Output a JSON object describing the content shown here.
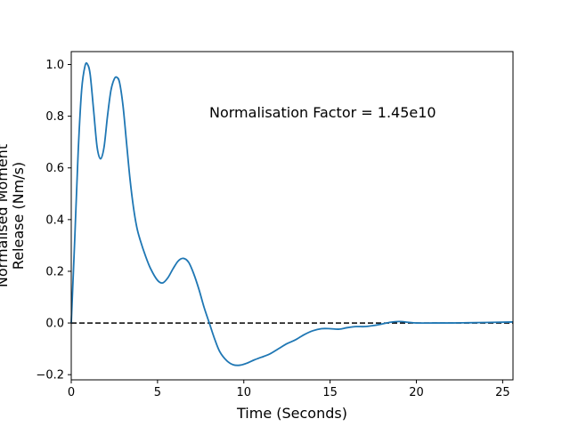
{
  "chart_data": {
    "type": "line",
    "xlabel": "Time (Seconds)",
    "ylabel": [
      "Normalised Moment",
      "Release (Nm/s)"
    ],
    "xlim": [
      0,
      25.6
    ],
    "ylim": [
      -0.22,
      1.05
    ],
    "xticks": [
      0,
      5,
      10,
      15,
      20,
      25
    ],
    "yticks": [
      -0.2,
      0.0,
      0.2,
      0.4,
      0.6,
      0.8,
      1.0
    ],
    "xtick_labels": [
      "0",
      "5",
      "10",
      "15",
      "20",
      "25"
    ],
    "ytick_labels": [
      "−0.2",
      "0.0",
      "0.2",
      "0.4",
      "0.6",
      "0.8",
      "1.0"
    ],
    "annotation": "Normalisation Factor = 1.45e10",
    "reference_line": {
      "y": 0.0,
      "style": "dashed",
      "color": "#000000"
    },
    "grid": false,
    "series": [
      {
        "color": "#1f77b4",
        "x": [
          0,
          0.2,
          0.4,
          0.6,
          0.8,
          0.95,
          1.1,
          1.3,
          1.5,
          1.7,
          1.9,
          2.1,
          2.3,
          2.5,
          2.65,
          2.8,
          3.0,
          3.2,
          3.4,
          3.6,
          3.8,
          4.0,
          4.3,
          4.6,
          5.0,
          5.3,
          5.6,
          5.9,
          6.2,
          6.5,
          6.8,
          7.1,
          7.4,
          7.7,
          8.0,
          8.3,
          8.6,
          9.0,
          9.4,
          9.8,
          10.2,
          10.6,
          11.0,
          11.5,
          12.0,
          12.5,
          13.0,
          13.5,
          14.0,
          14.5,
          15.0,
          15.5,
          16.0,
          16.5,
          17.0,
          17.5,
          18.0,
          18.5,
          19.0,
          19.5,
          20.0,
          21.0,
          22.0,
          23.0,
          24.0,
          25.0,
          25.6
        ],
        "y": [
          0.0,
          0.32,
          0.66,
          0.9,
          0.995,
          1.0,
          0.96,
          0.82,
          0.68,
          0.635,
          0.68,
          0.8,
          0.9,
          0.945,
          0.95,
          0.93,
          0.84,
          0.7,
          0.56,
          0.45,
          0.37,
          0.32,
          0.26,
          0.21,
          0.165,
          0.155,
          0.175,
          0.21,
          0.24,
          0.25,
          0.235,
          0.19,
          0.13,
          0.06,
          0.0,
          -0.06,
          -0.11,
          -0.145,
          -0.162,
          -0.163,
          -0.155,
          -0.143,
          -0.133,
          -0.12,
          -0.1,
          -0.08,
          -0.065,
          -0.045,
          -0.03,
          -0.022,
          -0.022,
          -0.024,
          -0.018,
          -0.014,
          -0.014,
          -0.01,
          -0.004,
          0.003,
          0.006,
          0.003,
          0.0,
          0.0,
          0.0,
          0.001,
          0.002,
          0.003,
          0.004
        ]
      }
    ]
  }
}
